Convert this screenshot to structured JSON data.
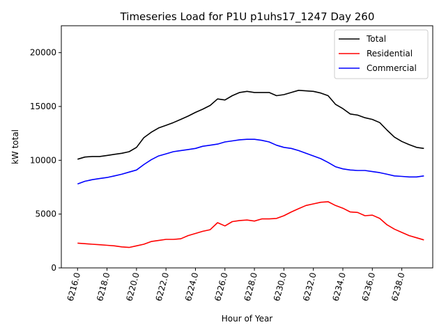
{
  "chart_data": {
    "type": "line",
    "title": "Timeseries Load for P1U p1uhs17_1247  Day 260",
    "xlabel": "Hour of Year",
    "ylabel": "kW total",
    "xlim": [
      6214.9,
      6240.1
    ],
    "ylim": [
      0,
      22500
    ],
    "xticks": [
      6216,
      6218,
      6220,
      6222,
      6224,
      6226,
      6228,
      6230,
      6232,
      6234,
      6236,
      6238
    ],
    "xtick_labels": [
      "6216.0",
      "6218.0",
      "6220.0",
      "6222.0",
      "6224.0",
      "6226.0",
      "6228.0",
      "6230.0",
      "6232.0",
      "6234.0",
      "6236.0",
      "6238.0"
    ],
    "yticks": [
      0,
      5000,
      10000,
      15000,
      20000
    ],
    "ytick_labels": [
      "0",
      "5000",
      "10000",
      "15000",
      "20000"
    ],
    "legend_position": "top-right",
    "x": [
      6216.0,
      6216.5,
      6217.0,
      6217.5,
      6218.0,
      6218.5,
      6219.0,
      6219.5,
      6220.0,
      6220.5,
      6221.0,
      6221.5,
      6222.0,
      6222.5,
      6223.0,
      6223.5,
      6224.0,
      6224.5,
      6225.0,
      6225.5,
      6226.0,
      6226.5,
      6227.0,
      6227.5,
      6228.0,
      6228.5,
      6229.0,
      6229.5,
      6230.0,
      6230.5,
      6231.0,
      6231.5,
      6232.0,
      6232.5,
      6233.0,
      6233.5,
      6234.0,
      6234.5,
      6235.0,
      6235.5,
      6236.0,
      6236.5,
      6237.0,
      6237.5,
      6238.0,
      6238.5,
      6239.0,
      6239.5
    ],
    "series": [
      {
        "name": "Total",
        "color": "#000000",
        "values": [
          10100,
          10300,
          10350,
          10350,
          10450,
          10550,
          10650,
          10800,
          11200,
          12100,
          12600,
          13000,
          13250,
          13500,
          13800,
          14100,
          14450,
          14750,
          15100,
          15700,
          15600,
          16000,
          16300,
          16400,
          16300,
          16300,
          16300,
          16000,
          16100,
          16300,
          16500,
          16450,
          16400,
          16250,
          16000,
          15200,
          14800,
          14300,
          14200,
          13950,
          13800,
          13500,
          12800,
          12150,
          11750,
          11450,
          11200,
          11100
        ]
      },
      {
        "name": "Residential",
        "color": "#ff0000",
        "values": [
          2300,
          2250,
          2200,
          2150,
          2100,
          2050,
          1950,
          1900,
          2050,
          2200,
          2450,
          2550,
          2650,
          2650,
          2700,
          3000,
          3200,
          3400,
          3550,
          4200,
          3900,
          4300,
          4400,
          4450,
          4350,
          4550,
          4550,
          4600,
          4850,
          5200,
          5500,
          5800,
          5950,
          6100,
          6150,
          5800,
          5550,
          5200,
          5150,
          4850,
          4900,
          4600,
          4000,
          3600,
          3300,
          3000,
          2800,
          2600
        ]
      },
      {
        "name": "Commercial",
        "color": "#0000ff",
        "values": [
          7800,
          8050,
          8200,
          8300,
          8400,
          8550,
          8700,
          8900,
          9100,
          9600,
          10050,
          10400,
          10600,
          10800,
          10900,
          11000,
          11100,
          11300,
          11400,
          11500,
          11700,
          11800,
          11900,
          11950,
          11950,
          11850,
          11700,
          11400,
          11200,
          11100,
          10900,
          10650,
          10400,
          10150,
          9800,
          9400,
          9200,
          9100,
          9050,
          9050,
          8950,
          8850,
          8700,
          8550,
          8500,
          8450,
          8450,
          8550
        ]
      }
    ]
  }
}
